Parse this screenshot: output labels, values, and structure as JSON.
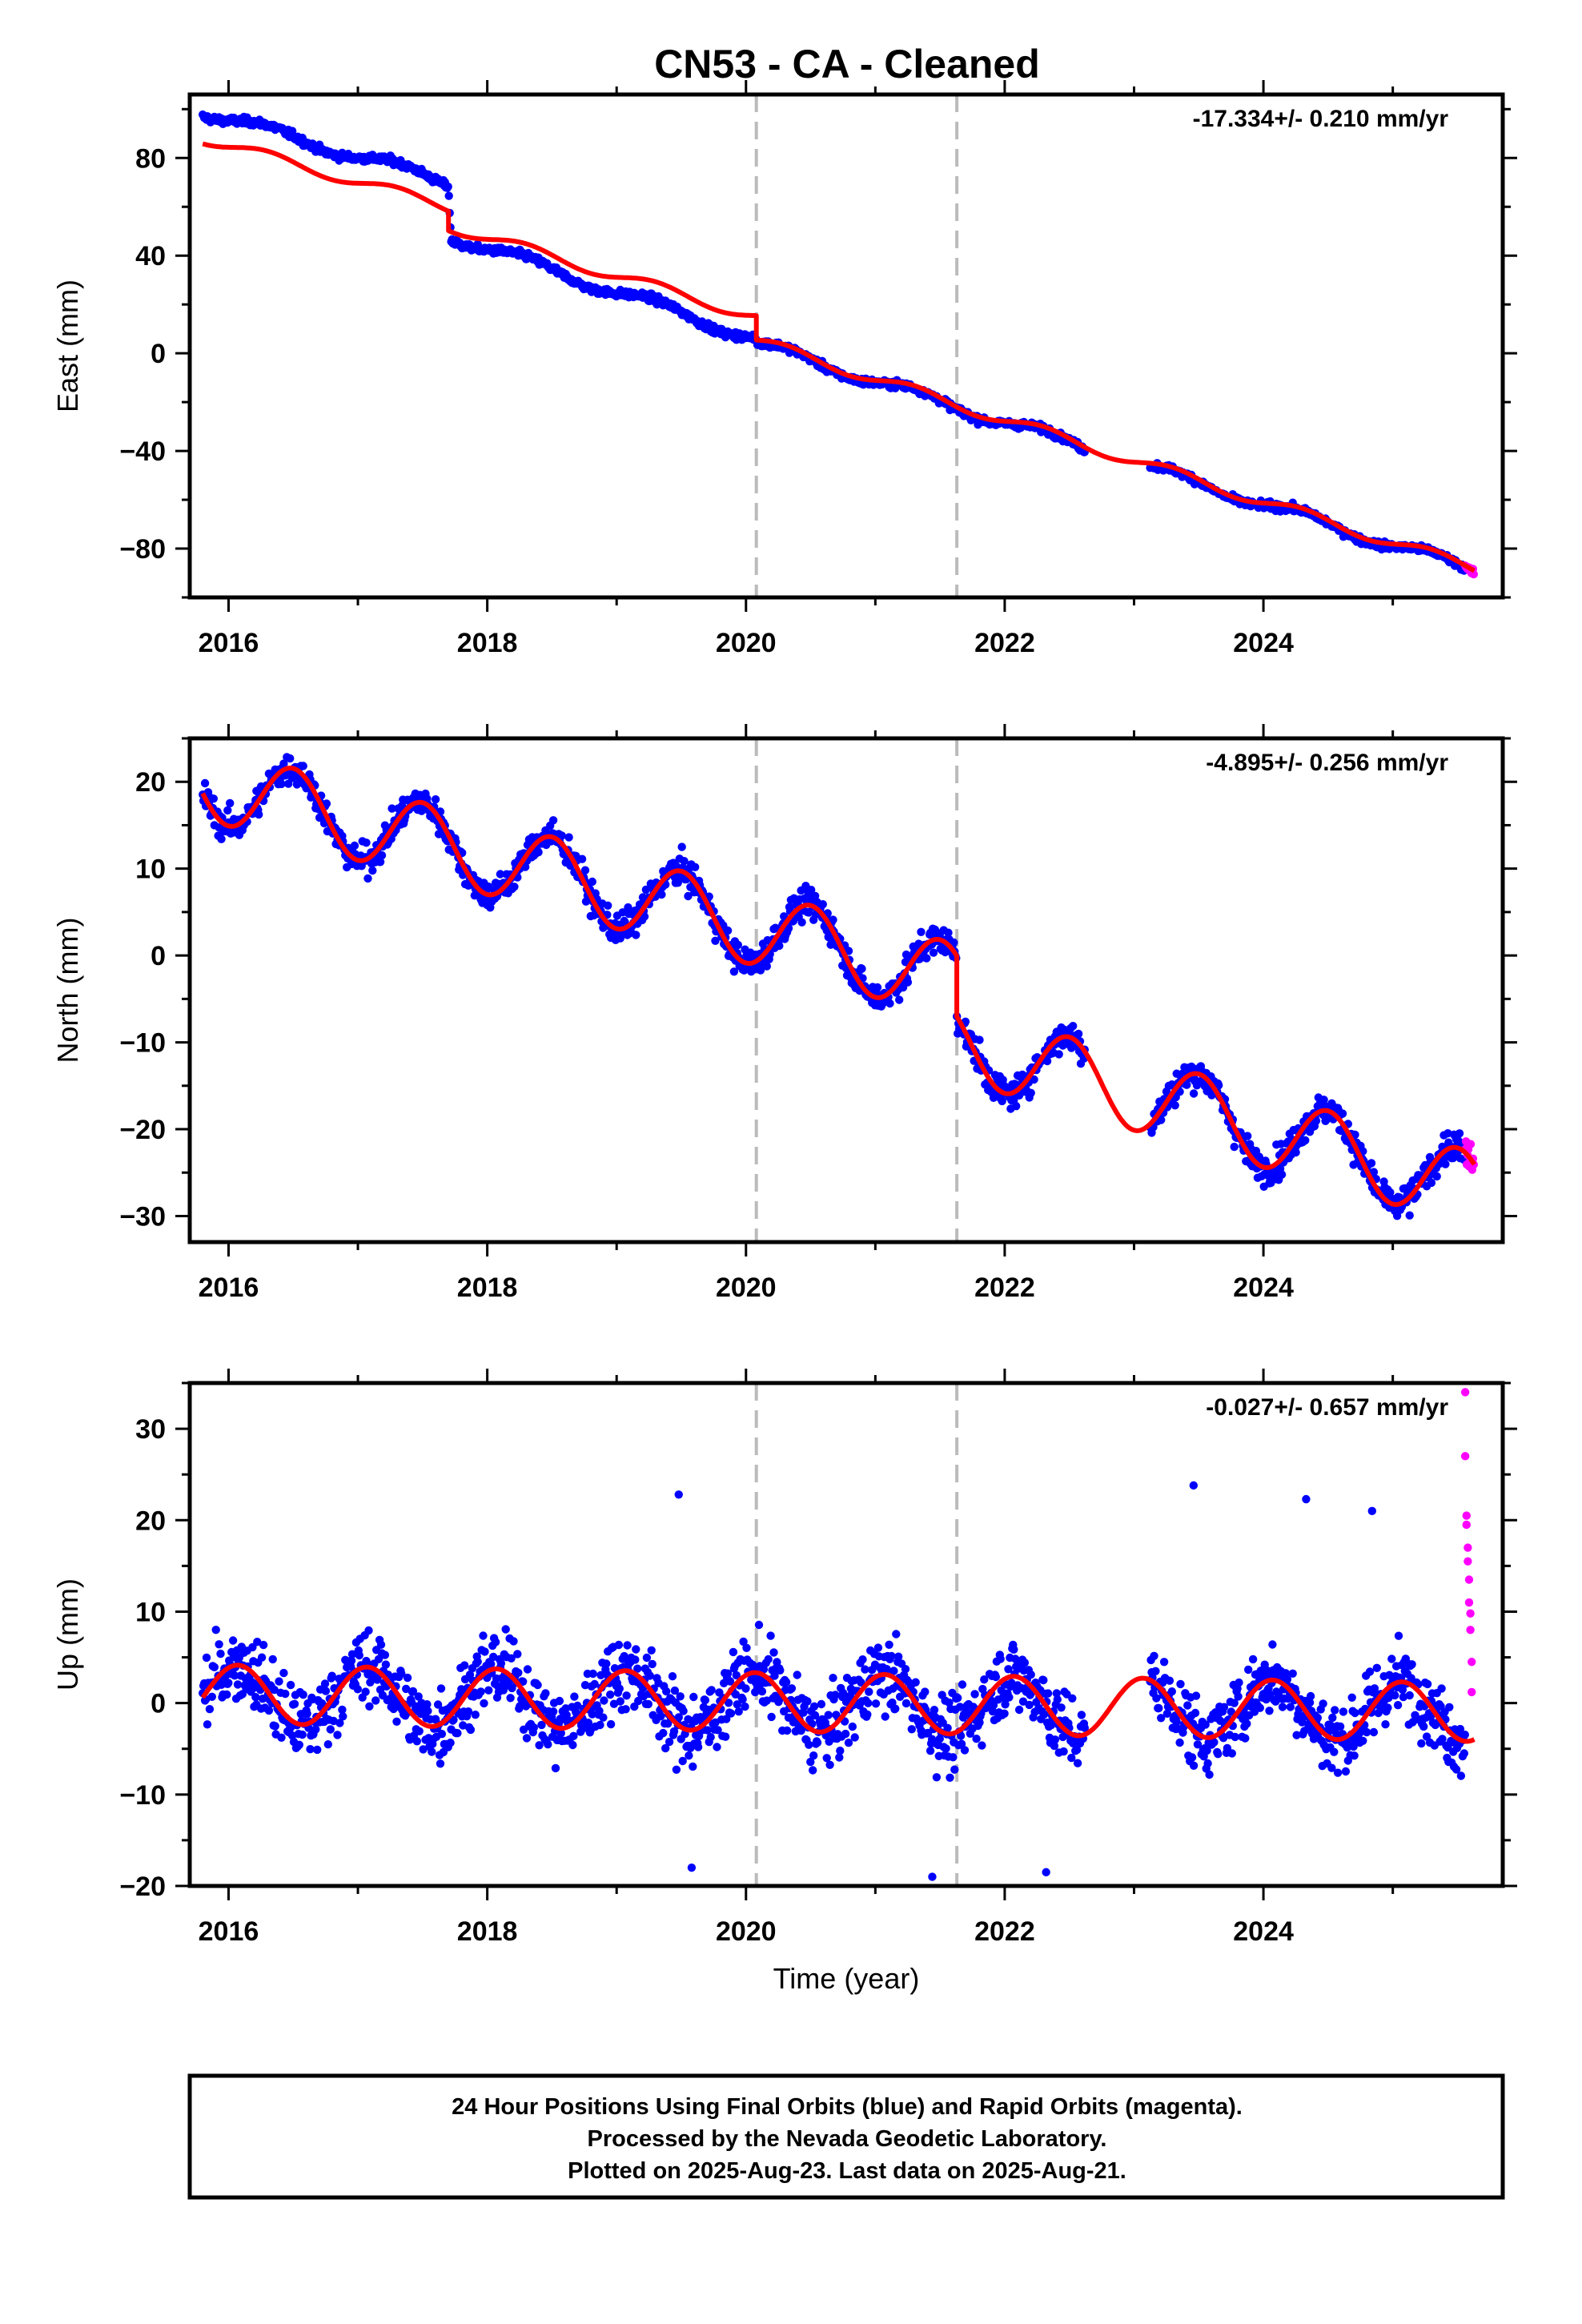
{
  "title": "CN53  - CA - Cleaned",
  "footer": {
    "lines": [
      "24 Hour Positions Using Final Orbits (blue) and Rapid Orbits (magenta).",
      "Processed by the Nevada Geodetic Laboratory.",
      "Plotted on 2025-Aug-23. Last data on 2025-Aug-21."
    ]
  },
  "colors": {
    "final_orbits": "#0000ff",
    "rapid_orbits": "#ff00ff",
    "model": "#ff0000",
    "event_lines": "#bbbbbb"
  },
  "chart_data": [
    {
      "type": "scatter",
      "name": "east",
      "ylabel": "East (mm)",
      "xlabel": "",
      "rate_text": "-17.334+/- 0.210 mm/yr",
      "xlim": [
        2015.7,
        2025.85
      ],
      "ylim": [
        -100,
        106
      ],
      "xticks": [
        2016,
        2018,
        2020,
        2022,
        2024
      ],
      "yticks": [
        -80,
        -40,
        0,
        40,
        80
      ],
      "ytick_labels": [
        "−80",
        "−40",
        "0",
        "40",
        "80"
      ],
      "event_lines": [
        2020.08,
        2021.63
      ],
      "data_start": 2015.8,
      "data_end": 2025.63,
      "gap": [
        2022.62,
        2023.12
      ],
      "rapid_start": 2025.56,
      "segments": [
        {
          "x": [
            2015.8,
            2017.7
          ],
          "y": [
            99,
            70
          ]
        },
        {
          "x": [
            2017.72,
            2020.08
          ],
          "y": [
            48,
            6
          ]
        },
        {
          "x": [
            2020.08,
            2025.63
          ],
          "y": [
            4,
            -89
          ]
        }
      ],
      "scatter_noise": 1.6,
      "model": {
        "segments": [
          {
            "x": [
              2015.8,
              2017.7
            ],
            "y": [
              88,
              60
            ]
          },
          {
            "x": [
              2017.7,
              2020.08
            ],
            "y": [
              52,
              15
            ]
          },
          {
            "x": [
              2020.08,
              2025.63
            ],
            "y": [
              5,
              -88
            ]
          }
        ],
        "annual_amp": 2.2,
        "phase": 0.3
      }
    },
    {
      "type": "scatter",
      "name": "north",
      "ylabel": "North (mm)",
      "xlabel": "",
      "rate_text": "-4.895+/- 0.256 mm/yr",
      "xlim": [
        2015.7,
        2025.85
      ],
      "ylim": [
        -33,
        25
      ],
      "xticks": [
        2016,
        2018,
        2020,
        2022,
        2024
      ],
      "yticks": [
        -30,
        -20,
        -10,
        0,
        10,
        20
      ],
      "ytick_labels": [
        "−30",
        "−20",
        "−10",
        "0",
        "10",
        "20"
      ],
      "event_lines": [
        2020.08,
        2021.63
      ],
      "data_start": 2015.8,
      "data_end": 2025.63,
      "gap": [
        2022.62,
        2023.12
      ],
      "rapid_start": 2025.56,
      "segments": [
        {
          "x": [
            2015.8,
            2021.63
          ],
          "y": [
            20,
            -3
          ]
        },
        {
          "x": [
            2021.63,
            2025.63
          ],
          "y": [
            -10,
            -27
          ]
        }
      ],
      "scatter_noise": 1.9,
      "model": {
        "segments": [
          {
            "x": [
              2015.8,
              2021.63
            ],
            "y": [
              20,
              -3
            ]
          },
          {
            "x": [
              2021.63,
              2025.63
            ],
            "y": [
              -10,
              -27
            ]
          }
        ],
        "annual_amp": 4.3,
        "phase": 0.5
      }
    },
    {
      "type": "scatter",
      "name": "up",
      "ylabel": "Up (mm)",
      "xlabel": "Time (year)",
      "rate_text": "-0.027+/- 0.657 mm/yr",
      "xlim": [
        2015.7,
        2025.85
      ],
      "ylim": [
        -20,
        35
      ],
      "xticks": [
        2016,
        2018,
        2020,
        2022,
        2024
      ],
      "yticks": [
        -20,
        -10,
        0,
        10,
        20,
        30
      ],
      "ytick_labels": [
        "−20",
        "−10",
        "0",
        "10",
        "20",
        "30"
      ],
      "event_lines": [
        2020.08,
        2021.63
      ],
      "data_start": 2015.8,
      "data_end": 2025.63,
      "gap": [
        2022.62,
        2023.12
      ],
      "rapid_start": 2025.56,
      "segments": [
        {
          "x": [
            2015.8,
            2025.63
          ],
          "y": [
            1,
            -1
          ]
        }
      ],
      "scatter_noise": 4.3,
      "outliers": [
        {
          "x": 2019.48,
          "y": 22.8
        },
        {
          "x": 2019.58,
          "y": -18
        },
        {
          "x": 2021.44,
          "y": -19
        },
        {
          "x": 2022.32,
          "y": -18.5
        },
        {
          "x": 2023.46,
          "y": 23.8
        },
        {
          "x": 2024.33,
          "y": 22.3
        },
        {
          "x": 2024.84,
          "y": 21.0
        }
      ],
      "rapid_points": [
        {
          "x": 2025.56,
          "y": 34.0
        },
        {
          "x": 2025.56,
          "y": 27.0
        },
        {
          "x": 2025.57,
          "y": 20.5
        },
        {
          "x": 2025.57,
          "y": 19.5
        },
        {
          "x": 2025.58,
          "y": 17.0
        },
        {
          "x": 2025.58,
          "y": 15.5
        },
        {
          "x": 2025.59,
          "y": 13.5
        },
        {
          "x": 2025.59,
          "y": 11.0
        },
        {
          "x": 2025.6,
          "y": 9.8
        },
        {
          "x": 2025.6,
          "y": 8.0
        },
        {
          "x": 2025.61,
          "y": 4.5
        },
        {
          "x": 2025.61,
          "y": 1.2
        }
      ],
      "model": {
        "segments": [
          {
            "x": [
              2015.8,
              2025.63
            ],
            "y": [
              1,
              -1
            ]
          }
        ],
        "annual_amp": 3.2,
        "phase": 0.07
      }
    }
  ]
}
